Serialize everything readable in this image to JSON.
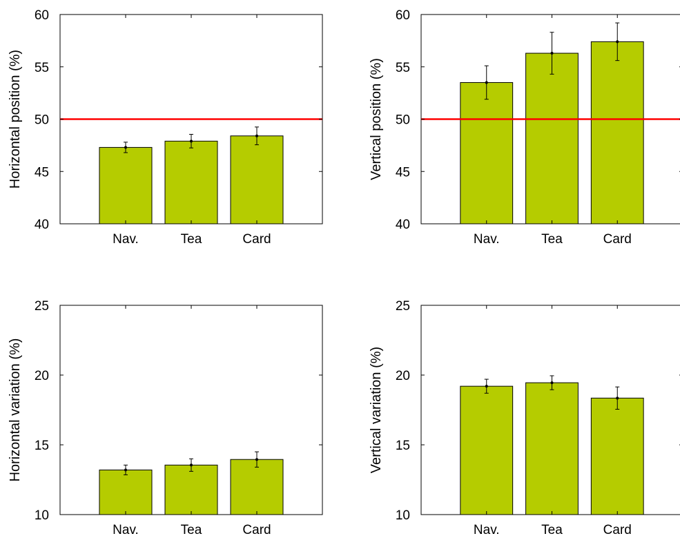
{
  "chart_data": [
    {
      "type": "bar",
      "categories": [
        "Nav.",
        "Tea",
        "Card"
      ],
      "values": [
        47.3,
        47.9,
        48.4
      ],
      "error": [
        0.5,
        0.65,
        0.85
      ],
      "ylabel": "Horizontal position (%)",
      "xlabel": "",
      "ylim": [
        40,
        60
      ],
      "yticks": [
        40,
        45,
        50,
        55,
        60
      ],
      "reference_line": 50,
      "bar_color": "#b5cc00",
      "reference_color": "#ff0000",
      "grid": false
    },
    {
      "type": "bar",
      "categories": [
        "Nav.",
        "Tea",
        "Card"
      ],
      "values": [
        53.5,
        56.3,
        57.4
      ],
      "error": [
        1.6,
        2.0,
        1.8
      ],
      "ylabel": "Vertical position (%)",
      "xlabel": "",
      "ylim": [
        40,
        60
      ],
      "yticks": [
        40,
        45,
        50,
        55,
        60
      ],
      "reference_line": 50,
      "bar_color": "#b5cc00",
      "reference_color": "#ff0000",
      "grid": false
    },
    {
      "type": "bar",
      "categories": [
        "Nav.",
        "Tea",
        "Card"
      ],
      "values": [
        13.2,
        13.55,
        13.95
      ],
      "error": [
        0.35,
        0.45,
        0.55
      ],
      "ylabel": "Horizontal variation (%)",
      "xlabel": "",
      "ylim": [
        10,
        25
      ],
      "yticks": [
        10,
        15,
        20,
        25
      ],
      "bar_color": "#b5cc00",
      "grid": false
    },
    {
      "type": "bar",
      "categories": [
        "Nav.",
        "Tea",
        "Card"
      ],
      "values": [
        19.2,
        19.45,
        18.35
      ],
      "error": [
        0.5,
        0.5,
        0.8
      ],
      "ylabel": "Vertical variation (%)",
      "xlabel": "",
      "ylim": [
        10,
        25
      ],
      "yticks": [
        10,
        15,
        20,
        25
      ],
      "bar_color": "#b5cc00",
      "grid": false
    }
  ]
}
